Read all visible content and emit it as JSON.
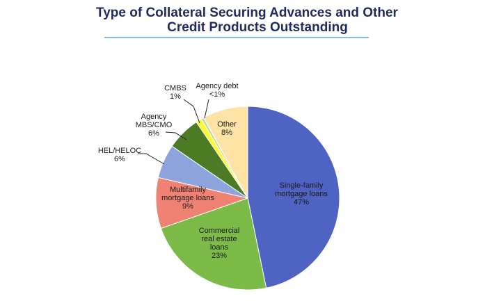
{
  "title": {
    "line1": "Type of Collateral Securing Advances and Other",
    "line2": "Credit Products Outstanding"
  },
  "chart_data": {
    "type": "pie",
    "title": "Type of Collateral Securing Advances and Other Credit Products Outstanding",
    "slices": [
      {
        "label": "Single-family mortgage loans",
        "value": 47,
        "display": "47%",
        "color": "#4f63c2"
      },
      {
        "label": "Commercial real estate loans",
        "value": 23,
        "display": "23%",
        "color": "#7dbb48"
      },
      {
        "label": "Multifamily mortgage loans",
        "value": 9,
        "display": "9%",
        "color": "#ef8272"
      },
      {
        "label": "HEL/HELOC",
        "value": 6,
        "display": "6%",
        "color": "#8ea3dc"
      },
      {
        "label": "Agency MBS/CMO",
        "value": 6,
        "display": "6%",
        "color": "#4c7a25"
      },
      {
        "label": "CMBS",
        "value": 1,
        "display": "1%",
        "color": "#fbfb2e"
      },
      {
        "label": "Agency debt",
        "value": 0.5,
        "display": "<1%",
        "color": "#c6df98"
      },
      {
        "label": "Other",
        "value": 8,
        "display": "8%",
        "color": "#fde4a6"
      }
    ]
  }
}
